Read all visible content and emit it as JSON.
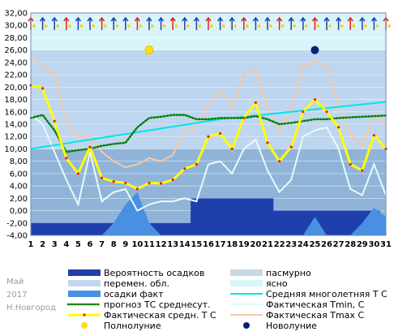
{
  "chart_data": {
    "type": "line",
    "x": [
      1,
      2,
      3,
      4,
      5,
      6,
      7,
      8,
      9,
      10,
      11,
      12,
      13,
      14,
      15,
      16,
      17,
      18,
      19,
      20,
      21,
      22,
      23,
      24,
      25,
      26,
      27,
      28,
      29,
      30,
      31
    ],
    "ylim": [
      -4,
      32
    ],
    "yticks": [
      "32,00",
      "30,00",
      "28,00",
      "26,00",
      "24,00",
      "22,00",
      "20,00",
      "18,00",
      "16,00",
      "14,00",
      "12,00",
      "10,00",
      "8,00",
      "6,00",
      "4,00",
      "2,00",
      "0,00",
      "-2,00",
      "-4,00"
    ],
    "series": [
      {
        "name": "Фактическая средн. Т С",
        "color": "#ffff00",
        "values": [
          20.3,
          19.8,
          14.5,
          8.5,
          6.0,
          10.3,
          5.3,
          4.7,
          4.5,
          3.5,
          4.5,
          4.4,
          5.0,
          6.8,
          7.5,
          12.0,
          12.5,
          10.0,
          15.0,
          17.5,
          11.0,
          8.0,
          10.3,
          16.0,
          18.0,
          16.0,
          13.5,
          7.5,
          6.5,
          12.2,
          10.0
        ]
      },
      {
        "name": "Фактическая Tmax C",
        "color": "#f4c9a6",
        "values": [
          25.2,
          23.5,
          22.0,
          14.5,
          12.0,
          12.0,
          9.5,
          8.0,
          7.0,
          7.5,
          8.5,
          8.0,
          9.0,
          13.0,
          13.5,
          17.0,
          19.5,
          16.5,
          22.0,
          23.0,
          16.5,
          13.0,
          16.5,
          23.5,
          24.0,
          23.5,
          17.0,
          12.5,
          10.5,
          15.5,
          14.0
        ]
      },
      {
        "name": "Фактическая Tmin, С",
        "color": "#e0f7f7",
        "values": [
          15.5,
          14.0,
          9.5,
          5.0,
          1.0,
          9.5,
          1.5,
          3.0,
          3.5,
          0.0,
          1.0,
          1.5,
          1.5,
          2.0,
          1.5,
          7.5,
          8.0,
          6.0,
          10.0,
          11.5,
          6.5,
          3.0,
          5.0,
          12.0,
          13.0,
          13.5,
          10.0,
          3.5,
          2.5,
          7.5,
          2.5
        ]
      },
      {
        "name": "прогноз ТС среднесут.",
        "color": "#008000",
        "values": [
          15.0,
          15.5,
          13.0,
          9.5,
          9.8,
          10.0,
          10.5,
          10.8,
          11.0,
          13.5,
          15.0,
          15.2,
          15.5,
          15.5,
          14.8,
          14.8,
          15.0,
          15.0,
          15.0,
          15.3,
          14.8,
          14.0,
          14.2,
          14.5,
          14.8,
          14.8,
          15.0,
          15.1,
          15.2,
          15.3,
          15.4
        ]
      },
      {
        "name": "Средняя многолетняя Т С",
        "color": "#00e5e5",
        "values": [
          10.0,
          10.3,
          10.6,
          10.9,
          11.2,
          11.5,
          11.8,
          12.1,
          12.4,
          12.7,
          13.0,
          13.3,
          13.6,
          13.9,
          14.2,
          14.5,
          14.8,
          15.0,
          15.2,
          15.4,
          15.6,
          15.8,
          16.0,
          16.2,
          16.4,
          16.6,
          16.8,
          17.0,
          17.2,
          17.4,
          17.6
        ]
      },
      {
        "name": "осадки факт",
        "color": "#4a90e2",
        "values": [
          -4,
          -4,
          -4,
          -4,
          -4,
          -4,
          -4,
          -2,
          1,
          3,
          -2,
          -4,
          -4,
          -4,
          -4,
          -4,
          -4,
          -4,
          -4,
          -4,
          -4,
          -4,
          -4,
          -4,
          -1,
          -4,
          -4,
          -4,
          -2,
          0.5,
          -1
        ]
      },
      {
        "name": "Вероятность осадков",
        "color": "#1f3fad",
        "values": [
          -2,
          -2,
          -2,
          -2,
          -2,
          -2,
          -2,
          -2,
          -2,
          -2,
          -2,
          -2,
          -2,
          -2,
          2,
          2,
          2,
          2,
          2,
          2,
          2,
          0,
          0,
          0,
          0,
          0,
          0,
          0,
          0,
          0,
          -4
        ]
      }
    ],
    "sky": [
      "partly",
      "partly",
      "partly",
      "partly",
      "partly",
      "partly",
      "partly",
      "partly",
      "partly",
      "partly",
      "partly",
      "partly",
      "partly",
      "partly",
      "partly",
      "partly",
      "partly",
      "partly",
      "partly",
      "partly",
      "partly",
      "partly",
      "partly",
      "partly",
      "partly",
      "partly",
      "partly",
      "partly",
      "partly",
      "partly",
      "partly"
    ],
    "full_moon_day": 11,
    "new_moon_day": 25,
    "moon_level": 26
  },
  "legend": [
    {
      "label": "Вероятность осадков",
      "kind": "swatch",
      "color": "#1f3fad"
    },
    {
      "label": "пасмурно",
      "kind": "swatch",
      "color": "#c8d8e6"
    },
    {
      "label": "перемен. обл.",
      "kind": "swatch",
      "color": "#c3d5f0"
    },
    {
      "label": "ясно",
      "kind": "swatch",
      "color": "#d6f7fb"
    },
    {
      "label": "осадки факт",
      "kind": "swatch",
      "color": "#4a90e2"
    },
    {
      "label": "Средняя многолетняя Т С",
      "kind": "line",
      "color": "#00e5e5"
    },
    {
      "label": "прогноз ТС среднесут.",
      "kind": "dotted",
      "color": "#008000"
    },
    {
      "label": "Фактическая Tmin, С",
      "kind": "line",
      "color": "#e0f7f7"
    },
    {
      "label": "Фактическая средн. Т С",
      "kind": "yellowline",
      "color": "#ffff00"
    },
    {
      "label": "Фактическая Tmax C",
      "kind": "line",
      "color": "#f4c9a6"
    },
    {
      "label": "Полнолуние",
      "kind": "dot",
      "color": "#ffe000"
    },
    {
      "label": "Новолуние",
      "kind": "dot",
      "color": "#0a1f7a"
    }
  ],
  "side": {
    "month": "Май",
    "year": "2017",
    "city": "Н.Новгород"
  }
}
